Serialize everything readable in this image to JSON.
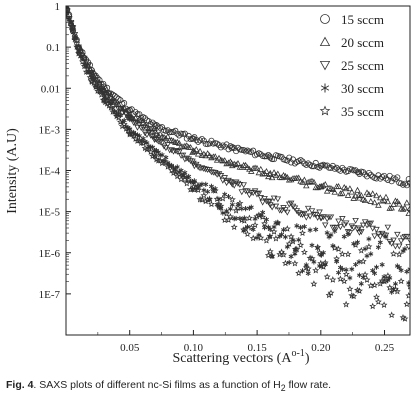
{
  "chart_data": {
    "type": "scatter",
    "xlabel": "Scattering vectors (A",
    "xlabel_sup": "o-1",
    "xlabel_end": ")",
    "ylabel": "Intensity (A.U)",
    "xlim": [
      0,
      0.27
    ],
    "ylim": [
      1e-08,
      1
    ],
    "yscale": "log",
    "xticks": [
      0.05,
      0.1,
      0.15,
      0.2,
      0.25
    ],
    "xtick_labels": [
      "0.05",
      "0.10",
      "0.15",
      "0.20",
      "0.25"
    ],
    "yticks": [
      1,
      0.1,
      0.01,
      0.001,
      0.0001,
      1e-05,
      1e-06,
      1e-07
    ],
    "ytick_labels": [
      "1",
      "0.1",
      "0.01",
      "1E-3",
      "1E-4",
      "1E-5",
      "1E-6",
      "1E-7"
    ],
    "legend_position": "top-right",
    "series": [
      {
        "name": "15 sccm",
        "marker": "circle",
        "x": [
          0.0,
          0.005,
          0.01,
          0.02,
          0.03,
          0.05,
          0.07,
          0.1,
          0.13,
          0.16,
          0.2,
          0.23,
          0.27
        ],
        "y": [
          1.0,
          0.3,
          0.1,
          0.028,
          0.011,
          0.003,
          0.0012,
          0.0006,
          0.00035,
          0.00022,
          0.00013,
          9e-05,
          5e-05
        ]
      },
      {
        "name": "20 sccm",
        "marker": "triangle-up",
        "x": [
          0.0,
          0.005,
          0.01,
          0.02,
          0.03,
          0.05,
          0.07,
          0.1,
          0.13,
          0.16,
          0.2,
          0.23,
          0.27
        ],
        "y": [
          1.0,
          0.3,
          0.1,
          0.025,
          0.009,
          0.0022,
          0.0009,
          0.0003,
          0.00015,
          8e-05,
          4e-05,
          2.5e-05,
          1.2e-05
        ]
      },
      {
        "name": "25 sccm",
        "marker": "triangle-down",
        "x": [
          0.0,
          0.005,
          0.01,
          0.02,
          0.03,
          0.05,
          0.07,
          0.1,
          0.13,
          0.16,
          0.2,
          0.23,
          0.27
        ],
        "y": [
          1.0,
          0.3,
          0.09,
          0.022,
          0.008,
          0.0018,
          0.0006,
          0.00015,
          5e-05,
          1.8e-05,
          7e-06,
          4e-06,
          2e-06
        ]
      },
      {
        "name": "30 sccm",
        "marker": "asterisk",
        "x": [
          0.0,
          0.005,
          0.01,
          0.02,
          0.03,
          0.05,
          0.07,
          0.1,
          0.12,
          0.14,
          0.16,
          0.18,
          0.2,
          0.23,
          0.27
        ],
        "y": [
          1.0,
          0.28,
          0.08,
          0.018,
          0.006,
          0.001,
          0.0003,
          5e-05,
          2e-05,
          7e-06,
          2.5e-06,
          1.2e-06,
          9e-07,
          6e-07,
          4e-07
        ]
      },
      {
        "name": "35 sccm",
        "marker": "star",
        "x": [
          0.0,
          0.005,
          0.01,
          0.02,
          0.03,
          0.05,
          0.07,
          0.1,
          0.12,
          0.14,
          0.16,
          0.18,
          0.2,
          0.22,
          0.25,
          0.27
        ],
        "y": [
          1.0,
          0.27,
          0.07,
          0.015,
          0.005,
          0.0008,
          0.00022,
          4e-05,
          1.5e-05,
          6e-06,
          2.5e-06,
          1.2e-06,
          5.5e-07,
          3e-07,
          2e-07,
          1.5e-07
        ]
      }
    ]
  },
  "caption": {
    "label": "Fig. 4",
    "text_before": ". SAXS plots of different nc-Si films as a function of H",
    "subscript": "2",
    "text_after": " flow rate."
  }
}
